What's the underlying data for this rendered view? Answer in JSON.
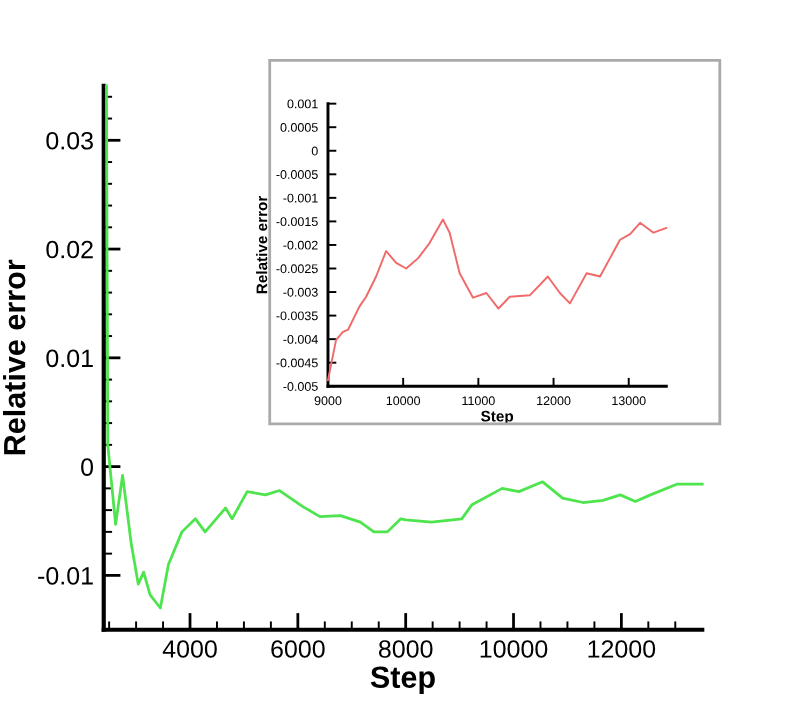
{
  "chart_data": [
    {
      "type": "line",
      "xlabel": "Step",
      "ylabel": "Relative error",
      "xlim": [
        2400,
        13500
      ],
      "ylim": [
        -0.015,
        0.035
      ],
      "xticks": [
        {
          "value": 2500,
          "label": null
        },
        {
          "value": 3000,
          "label": null
        },
        {
          "value": 3500,
          "label": null
        },
        4000,
        {
          "value": 4500,
          "label": null
        },
        {
          "value": 5000,
          "label": null
        },
        {
          "value": 5500,
          "label": null
        },
        6000,
        {
          "value": 6500,
          "label": null
        },
        {
          "value": 7000,
          "label": null
        },
        {
          "value": 7500,
          "label": null
        },
        8000,
        {
          "value": 8500,
          "label": null
        },
        {
          "value": 9000,
          "label": null
        },
        {
          "value": 9500,
          "label": null
        },
        10000,
        {
          "value": 10500,
          "label": null
        },
        {
          "value": 11000,
          "label": null
        },
        {
          "value": 11500,
          "label": null
        },
        12000,
        {
          "value": 12500,
          "label": null
        },
        {
          "value": 13000,
          "label": null
        }
      ],
      "yticks": [
        -0.01,
        {
          "value": -0.008,
          "label": null
        },
        {
          "value": -0.006,
          "label": null
        },
        {
          "value": -0.004,
          "label": null
        },
        {
          "value": -0.002,
          "label": null
        },
        0,
        {
          "value": 0.002,
          "label": null
        },
        {
          "value": 0.004,
          "label": null
        },
        {
          "value": 0.006,
          "label": null
        },
        {
          "value": 0.008,
          "label": null
        },
        0.01,
        {
          "value": 0.012,
          "label": null
        },
        {
          "value": 0.014,
          "label": null
        },
        {
          "value": 0.016,
          "label": null
        },
        {
          "value": 0.018,
          "label": null
        },
        0.02,
        {
          "value": 0.022,
          "label": null
        },
        {
          "value": 0.024,
          "label": null
        },
        {
          "value": 0.026,
          "label": null
        },
        {
          "value": 0.028,
          "label": null
        },
        0.03,
        {
          "value": 0.032,
          "label": null
        },
        {
          "value": 0.034,
          "label": null
        }
      ],
      "grid": false,
      "legend": false,
      "marker": "none",
      "line_style": "solid",
      "series": [
        {
          "color": "#4ee44e",
          "x": [
            2450,
            2475,
            2620,
            2750,
            2910,
            3040,
            3140,
            3260,
            3450,
            3600,
            3850,
            4100,
            4280,
            4660,
            4780,
            5060,
            5400,
            5660,
            6100,
            6410,
            6790,
            7160,
            7410,
            7660,
            7910,
            8000,
            8480,
            9040,
            9230,
            9790,
            10100,
            10540,
            10910,
            11290,
            11660,
            11980,
            12260,
            12540,
            13040,
            13500
          ],
          "values": [
            0.035,
            0.002,
            -0.0053,
            -0.0008,
            -0.0071,
            -0.0108,
            -0.0097,
            -0.0118,
            -0.013,
            -0.009,
            -0.006,
            -0.0048,
            -0.006,
            -0.0038,
            -0.0048,
            -0.0023,
            -0.0026,
            -0.0022,
            -0.0037,
            -0.0046,
            -0.0045,
            -0.0051,
            -0.006,
            -0.006,
            -0.0048,
            -0.0049,
            -0.0051,
            -0.0048,
            -0.0035,
            -0.002,
            -0.0023,
            -0.0014,
            -0.0029,
            -0.0033,
            -0.0031,
            -0.0026,
            -0.0032,
            -0.0026,
            -0.0016,
            -0.0016
          ]
        }
      ]
    },
    {
      "type": "line",
      "xlabel": "Step",
      "ylabel": "Relative error",
      "xlim": [
        9000,
        13500
      ],
      "ylim": [
        -0.005,
        0.001
      ],
      "xticks": [
        9000,
        10000,
        11000,
        12000,
        13000
      ],
      "yticks": [
        -0.005,
        -0.0045,
        -0.004,
        -0.0035,
        -0.003,
        -0.0025,
        -0.002,
        -0.0015,
        -0.001,
        -0.0005,
        0,
        0.0005,
        0.001
      ],
      "grid": false,
      "legend": false,
      "marker": "none",
      "line_style": "solid",
      "series": [
        {
          "color": "#f06a6a",
          "x": [
            9000,
            9107,
            9196,
            9267,
            9418,
            9507,
            9640,
            9773,
            9907,
            10040,
            10200,
            10351,
            10529,
            10618,
            10751,
            10929,
            11107,
            11267,
            11418,
            11684,
            11924,
            12084,
            12218,
            12440,
            12618,
            12751,
            12884,
            13018,
            13151,
            13329,
            13500
          ],
          "values": [
            -0.00487,
            -0.00402,
            -0.00385,
            -0.0038,
            -0.00331,
            -0.0031,
            -0.00267,
            -0.00213,
            -0.00238,
            -0.0025,
            -0.00228,
            -0.00196,
            -0.00146,
            -0.00174,
            -0.0026,
            -0.00312,
            -0.00302,
            -0.00335,
            -0.0031,
            -0.00307,
            -0.00267,
            -0.00302,
            -0.00324,
            -0.0026,
            -0.00267,
            -0.00228,
            -0.00189,
            -0.00177,
            -0.00153,
            -0.00174,
            -0.00164
          ]
        }
      ]
    }
  ]
}
